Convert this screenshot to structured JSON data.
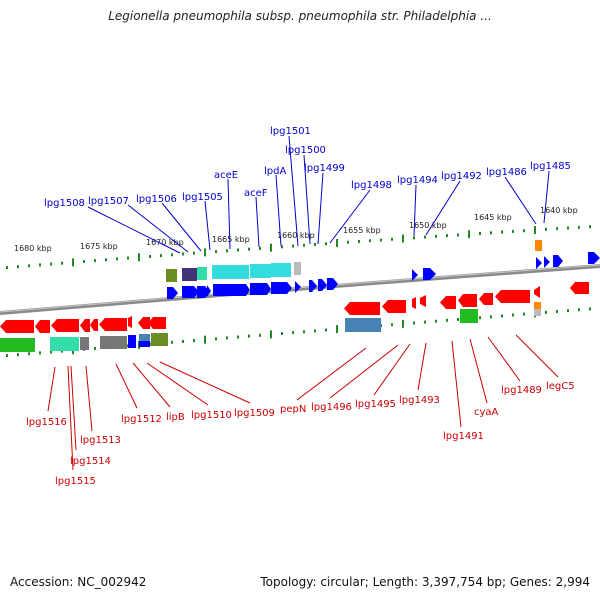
{
  "title": "Legionella pneumophila subsp. pneumophila str. Philadelphia ...",
  "footer": {
    "accession": "Accession: NC_002942",
    "summary": "Topology: circular; Length: 3,397,754 bp; Genes: 2,994"
  },
  "scale_labels": [
    "1680 kbp",
    "1675 kbp",
    "1670 kbp",
    "1665 kbp",
    "1660 kbp",
    "1655 kbp",
    "1650 kbp",
    "1645 kbp",
    "1640 kbp"
  ],
  "forward_gene_labels": [
    "lpg1508",
    "lpg1507",
    "lpg1506",
    "lpg1505",
    "aceE",
    "aceF",
    "lpdA",
    "lpg1501",
    "lpg1500",
    "lpg1499",
    "lpg1498",
    "lpg1494",
    "lpg1492",
    "lpg1486",
    "lpg1485"
  ],
  "reverse_gene_labels": [
    "lpg1516",
    "lpg1513",
    "lpg1514",
    "lpg1515",
    "lpg1512",
    "lipB",
    "lpg1510",
    "lpg1509",
    "pepN",
    "lpg1496",
    "lpg1495",
    "lpg1493",
    "lpg1491",
    "cyaA",
    "lpg1489",
    "legC5"
  ],
  "colors": {
    "forward_gene": "#0000ff",
    "reverse_gene": "#ff0000",
    "forward_label": "#0000cc",
    "reverse_label": "#cc0000",
    "backbone": "#888888",
    "tick": "#228822",
    "cog_cyan": "#33dddd",
    "cog_olive": "#6b8e23",
    "cog_purple": "#443377",
    "cog_green": "#22bb22",
    "cog_steel": "#4682b4",
    "cog_gray": "#777777",
    "cog_orange": "#ff8800",
    "cog_teal": "#33ddaa"
  }
}
